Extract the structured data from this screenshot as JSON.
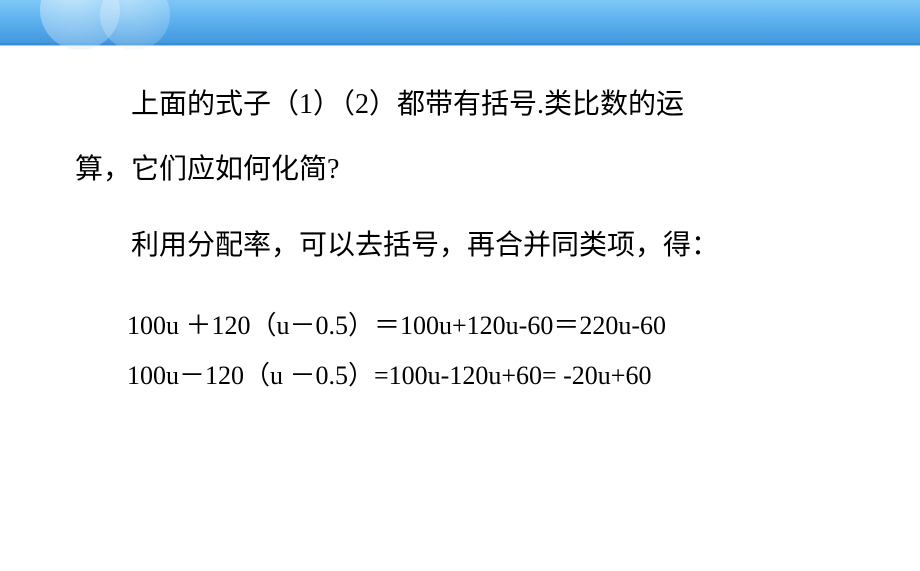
{
  "slide": {
    "background_gradient_top": "#5eb8f5",
    "background_gradient_bottom": "#ffffff",
    "header_color": "#4298de",
    "text_color": "#000000",
    "para1_line1": "上面的式子（1）（2）都带有括号.类比数的运",
    "para1_line2": "算，它们应如何化简?",
    "para2": "利用分配率，可以去括号，再合并同类项，得：",
    "equation1": "100u ＋120（u－0.5）＝100u+120u-60＝220u-60",
    "equation2": "100u－120（u －0.5）=100u-120u+60= -20u+60",
    "font_size_body": 28,
    "font_size_equation": 26
  }
}
